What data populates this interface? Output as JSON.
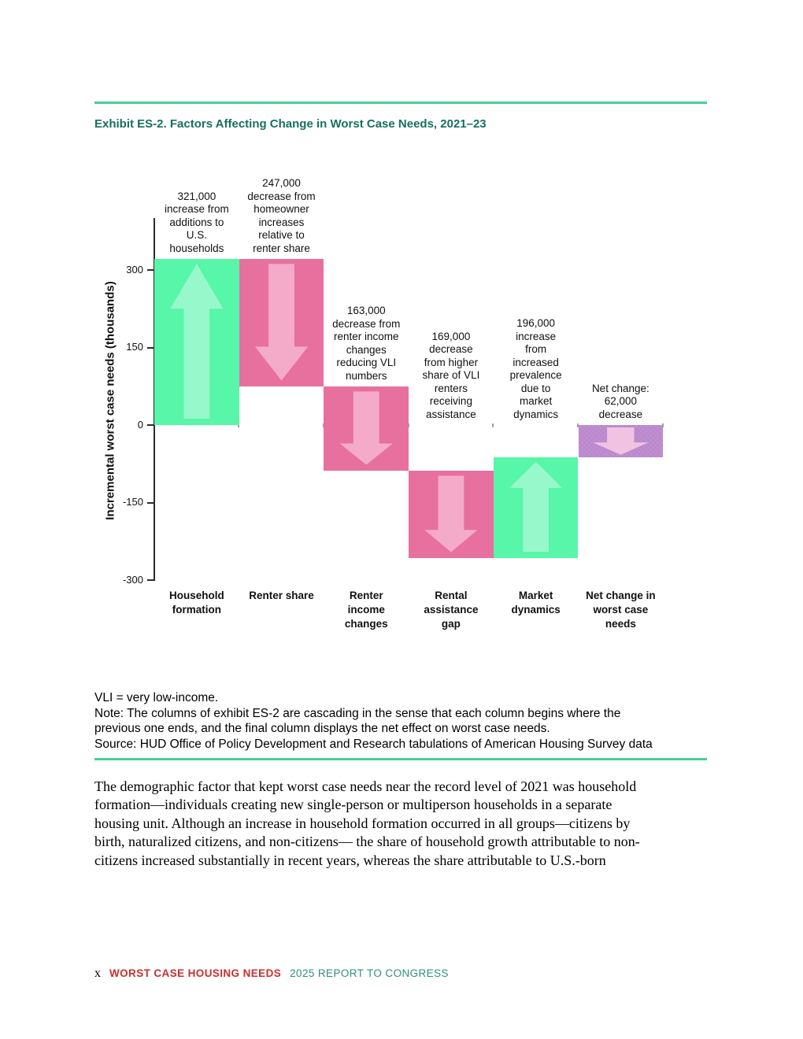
{
  "page": {
    "title": "Exhibit ES-2. Factors Affecting Change in Worst Case Needs, 2021–23",
    "title_color": "#186F60",
    "rule_color": "#44D092",
    "background": "#FFFFFF"
  },
  "chart_data": {
    "type": "bar",
    "subtype": "waterfall",
    "title": "Exhibit ES-2. Factors Affecting Change in Worst Case Needs, 2021–23",
    "xlabel": "",
    "ylabel": "Incremental worst case needs (thousands)",
    "ylim": [
      -300,
      400
    ],
    "yticks": [
      300,
      150,
      0,
      -150,
      -300
    ],
    "grid": false,
    "legend": false,
    "categories": [
      "Household formation",
      "Renter share",
      "Renter income changes",
      "Rental assistance gap",
      "Market dynamics",
      "Net change in worst case needs"
    ],
    "values": [
      321,
      -247,
      -163,
      -169,
      196,
      -62
    ],
    "bars": [
      {
        "name": "household-formation",
        "label": "Household\nformation",
        "annotation": "321,000\nincrease from\nadditions to\nU.S.\nhouseholds",
        "change": 321,
        "start": 0,
        "end": 321,
        "direction": "up",
        "fill": "#57F6A8",
        "arrow_fill": "#97F9CB"
      },
      {
        "name": "renter-share",
        "label": "Renter share",
        "annotation": "247,000\ndecrease from\nhomeowner\nincreases\nrelative to\nrenter share",
        "change": -247,
        "start": 321,
        "end": 74,
        "direction": "down",
        "fill": "#E8709E",
        "arrow_fill": "#F4ABC9"
      },
      {
        "name": "renter-income-changes",
        "label": "Renter\nincome\nchanges",
        "annotation": "163,000\ndecrease from\nrenter income\nchanges\nreducing VLI\nnumbers",
        "change": -163,
        "start": 74,
        "end": -89,
        "direction": "down",
        "fill": "#E8709E",
        "arrow_fill": "#F4ABC9"
      },
      {
        "name": "rental-assistance-gap",
        "label": "Rental\nassistance\ngap",
        "annotation": "169,000\ndecrease\nfrom higher\nshare of VLI\nrenters\nreceiving\nassistance",
        "change": -169,
        "start": -89,
        "end": -258,
        "direction": "down",
        "fill": "#E8709E",
        "arrow_fill": "#F4ABC9"
      },
      {
        "name": "market-dynamics",
        "label": "Market\ndynamics",
        "annotation": "196,000\nincrease\nfrom\nincreased\nprevalence\ndue to\nmarket\ndynamics",
        "change": 196,
        "start": -258,
        "end": -62,
        "direction": "up",
        "fill": "#57F6A8",
        "arrow_fill": "#97F9CB"
      },
      {
        "name": "net-change",
        "label": "Net change in\nworst case\nneeds",
        "annotation": "Net change:\n62,000\ndecrease",
        "change": -62,
        "start": 0,
        "end": -62,
        "direction": "down",
        "stubby": true,
        "pattern": {
          "type": "checker",
          "colors": [
            "#DD7CAE",
            "#9C9BEE"
          ]
        },
        "arrow_fill": "rgba(250, 205, 228, 0.85)"
      }
    ]
  },
  "notes": {
    "text": "VLI = very low-income.\nNote: The columns of exhibit ES-2 are cascading in the sense that each column begins where the\nprevious one ends, and the final column displays the net effect on worst case needs.\nSource: HUD Office of Policy Development and Research tabulations of American Housing Survey data"
  },
  "body": {
    "text": "The demographic factor that kept worst case needs near the record level of 2021 was household\nformation—individuals creating new single-person or multiperson households in a separate\nhousing unit. Although an increase in household formation occurred in all groups—citizens by\nbirth, naturalized citizens, and non-citizens— the share of household growth attributable to non-\ncitizens increased substantially in recent years, whereas the share attributable to U.S.-born"
  },
  "footer": {
    "page_number": "x",
    "title_red": "WORST CASE HOUSING NEEDS",
    "title_teal": "2025 REPORT TO CONGRESS",
    "red_color": "#C8302E",
    "teal_color": "#2F8F7D"
  }
}
